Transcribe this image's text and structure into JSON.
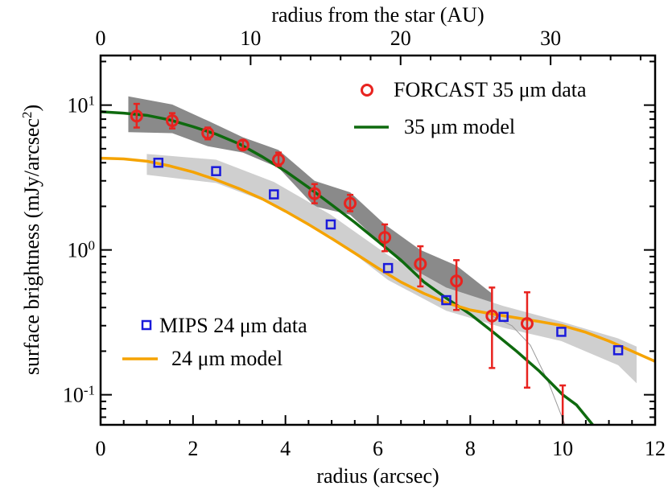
{
  "chart_data": {
    "type": "scatter",
    "title": "",
    "xlabel": "radius (arcsec)",
    "ylabel": "surface brightness (mJy/arcsec²)",
    "top_xlabel": "radius from the star (AU)",
    "xlim": [
      0,
      12
    ],
    "ylim": [
      0.062,
      22
    ],
    "yscale": "log",
    "x_ticks": [
      "0",
      "2",
      "4",
      "6",
      "8",
      "10",
      "12"
    ],
    "top_ticks": [
      {
        "value": 0,
        "label": "0"
      },
      {
        "value": 10,
        "label": "10"
      },
      {
        "value": 20,
        "label": "20"
      },
      {
        "value": 30,
        "label": "30"
      }
    ],
    "top_arcsec_per_au": 0.3246,
    "y_ticks": [
      {
        "value": 0.1,
        "label": "10-1",
        "base": "10",
        "exp": "-1"
      },
      {
        "value": 1,
        "label": "100",
        "base": "10",
        "exp": "0"
      },
      {
        "value": 10,
        "label": "101",
        "base": "10",
        "exp": "1"
      }
    ],
    "grid": false,
    "series": [
      {
        "name": "FORCAST 35 μm data",
        "kind": "points",
        "marker": "circle",
        "color": "#e8231f",
        "points": [
          {
            "x": 0.78,
            "y": 8.4,
            "ylo": 7.0,
            "yhi": 10.2
          },
          {
            "x": 1.55,
            "y": 7.8,
            "ylo": 6.9,
            "yhi": 8.8
          },
          {
            "x": 2.32,
            "y": 6.4,
            "ylo": 5.8,
            "yhi": 7.0
          },
          {
            "x": 3.08,
            "y": 5.3,
            "ylo": 5.0,
            "yhi": 5.7
          },
          {
            "x": 3.85,
            "y": 4.2,
            "ylo": 3.8,
            "yhi": 4.7
          },
          {
            "x": 4.63,
            "y": 2.45,
            "ylo": 2.1,
            "yhi": 2.85
          },
          {
            "x": 5.4,
            "y": 2.1,
            "ylo": 1.85,
            "yhi": 2.4
          },
          {
            "x": 6.15,
            "y": 1.22,
            "ylo": 0.98,
            "yhi": 1.5
          },
          {
            "x": 6.92,
            "y": 0.8,
            "ylo": 0.56,
            "yhi": 1.06
          },
          {
            "x": 7.7,
            "y": 0.61,
            "ylo": 0.385,
            "yhi": 0.85
          },
          {
            "x": 8.47,
            "y": 0.35,
            "ylo": 0.153,
            "yhi": 0.55
          },
          {
            "x": 9.23,
            "y": 0.31,
            "ylo": 0.112,
            "yhi": 0.51
          },
          {
            "x": 10.0,
            "y": 0.05,
            "ylo": 0.03,
            "yhi": 0.116
          }
        ]
      },
      {
        "name": "35 μm model",
        "kind": "line",
        "color": "#0e6a0e",
        "x": [
          0,
          0.5,
          1,
          1.5,
          2,
          2.5,
          3,
          3.5,
          4,
          4.5,
          5,
          5.5,
          6,
          6.5,
          7,
          7.5,
          8,
          8.5,
          9,
          9.5,
          10,
          10.3,
          10.65
        ],
        "y": [
          9.0,
          8.8,
          8.5,
          7.9,
          7.1,
          6.3,
          5.4,
          4.4,
          3.5,
          2.7,
          2.05,
          1.55,
          1.15,
          0.85,
          0.6,
          0.46,
          0.36,
          0.27,
          0.2,
          0.145,
          0.1,
          0.085,
          0.062
        ]
      },
      {
        "name": "MIPS 24 μm data",
        "kind": "points",
        "marker": "square",
        "color": "#1a1adb",
        "points": [
          {
            "x": 1.25,
            "y": 4.0
          },
          {
            "x": 2.5,
            "y": 3.5
          },
          {
            "x": 3.75,
            "y": 2.42
          },
          {
            "x": 4.98,
            "y": 1.5
          },
          {
            "x": 6.22,
            "y": 0.75
          },
          {
            "x": 7.48,
            "y": 0.45
          },
          {
            "x": 8.72,
            "y": 0.345
          },
          {
            "x": 9.97,
            "y": 0.272
          },
          {
            "x": 11.2,
            "y": 0.203
          }
        ]
      },
      {
        "name": "24 μm model",
        "kind": "line",
        "color": "#f5a300",
        "x": [
          0,
          0.5,
          1,
          1.5,
          2,
          2.5,
          3,
          3.5,
          4,
          4.5,
          5,
          5.5,
          6,
          6.5,
          7,
          7.5,
          8,
          8.5,
          9,
          9.5,
          10,
          10.5,
          11,
          11.5,
          12
        ],
        "y": [
          4.3,
          4.25,
          4.1,
          3.8,
          3.45,
          3.05,
          2.65,
          2.25,
          1.85,
          1.5,
          1.2,
          0.95,
          0.75,
          0.6,
          0.5,
          0.43,
          0.385,
          0.36,
          0.34,
          0.32,
          0.3,
          0.27,
          0.235,
          0.2,
          0.17
        ]
      }
    ],
    "bands": [
      {
        "for": "FORCAST 35 μm data",
        "color": "#8a8a8a",
        "x": [
          0.6,
          1.55,
          2.32,
          3.08,
          3.85,
          4.63,
          5.4,
          6.15,
          6.92,
          7.7,
          8.47
        ],
        "upper": [
          11.5,
          10.1,
          7.8,
          6.0,
          4.9,
          3.0,
          2.5,
          1.5,
          1.0,
          0.78,
          0.5
        ],
        "lower": [
          6.5,
          6.4,
          5.2,
          4.7,
          3.7,
          2.0,
          1.75,
          1.05,
          0.6,
          0.45,
          0.3
        ]
      },
      {
        "for": "MIPS 24 μm data",
        "color": "#cfcfcf",
        "x": [
          1.0,
          2.5,
          3.75,
          4.98,
          6.22,
          7.48,
          8.72,
          9.97,
          11.2,
          11.6
        ],
        "upper": [
          4.6,
          4.2,
          2.95,
          1.75,
          0.92,
          0.55,
          0.41,
          0.32,
          0.245,
          0.215
        ],
        "lower": [
          3.3,
          2.9,
          2.05,
          1.25,
          0.62,
          0.38,
          0.29,
          0.235,
          0.16,
          0.12
        ]
      }
    ],
    "thin_line": {
      "color": "#9a9a9a",
      "x": [
        8.47,
        8.9,
        9.3,
        9.7,
        10.05
      ],
      "y": [
        0.35,
        0.3,
        0.22,
        0.12,
        0.062
      ]
    },
    "legend": {
      "placement": "top-right and lower-left",
      "entries": [
        {
          "label": "FORCAST 35 μm data",
          "series": 0
        },
        {
          "label": "35 μm model",
          "series": 1
        },
        {
          "label": "MIPS 24 μm data",
          "series": 2
        },
        {
          "label": "24 μm model",
          "series": 3
        }
      ]
    }
  }
}
